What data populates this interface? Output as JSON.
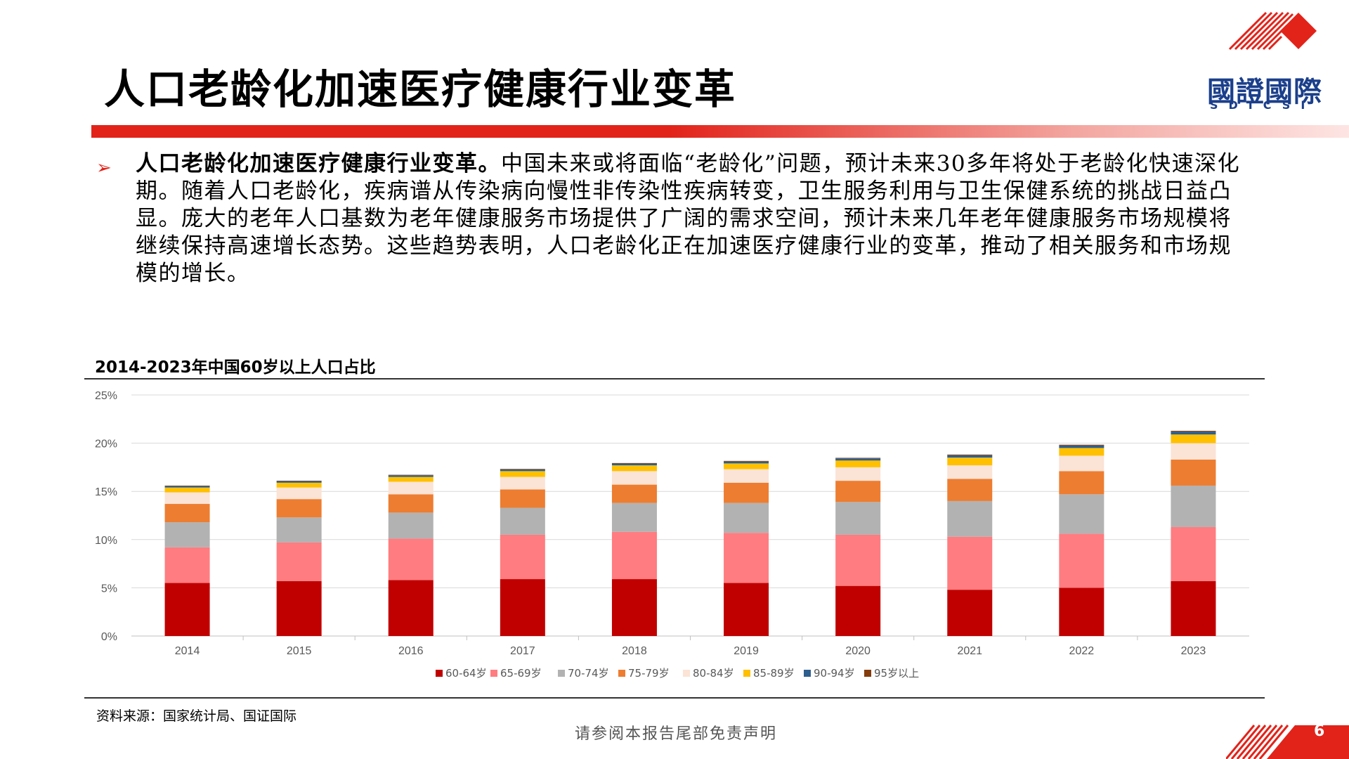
{
  "page": {
    "title": "人口老龄化加速医疗健康行业变革",
    "logo_name": "國證國際",
    "logo_sub": "SDICSI",
    "bullet_bold": "人口老龄化加速医疗健康行业变革。",
    "bullet_text": "中国未来或将面临“老龄化”问题，预计未来30多年将处于老龄化快速深化期。随着人口老龄化，疾病谱从传染病向慢性非传染性疾病转变，卫生服务利用与卫生保健系统的挑战日益凸显。庞大的老年人口基数为老年健康服务市场提供了广阔的需求空间，预计未来几年老年健康服务市场规模将继续保持高速增长态势。这些趋势表明，人口老龄化正在加速医疗健康行业的变革，推动了相关服务和市场规模的增长。",
    "source": "资料来源：国家统计局、国证国际",
    "disclaimer": "请参阅本报告尾部免责声明",
    "page_number": "6",
    "accent_color": "#e2231a",
    "logo_color": "#1b3f8b"
  },
  "chart_data": {
    "type": "bar",
    "stacked": true,
    "title": "2014-2023年中国60岁以上人口占比",
    "categories": [
      "2014",
      "2015",
      "2016",
      "2017",
      "2018",
      "2019",
      "2020",
      "2021",
      "2022",
      "2023"
    ],
    "ylim": [
      0,
      25
    ],
    "yticks": [
      "0%",
      "5%",
      "10%",
      "15%",
      "20%",
      "25%"
    ],
    "grid": true,
    "legend_position": "bottom",
    "series": [
      {
        "name": "60-64岁",
        "color": "#c00000",
        "values": [
          5.5,
          5.7,
          5.8,
          5.9,
          5.9,
          5.5,
          5.2,
          4.8,
          5.0,
          5.7
        ]
      },
      {
        "name": "65-69岁",
        "color": "#ff7c80",
        "values": [
          3.7,
          4.0,
          4.3,
          4.6,
          4.9,
          5.2,
          5.3,
          5.5,
          5.6,
          5.6
        ]
      },
      {
        "name": "70-74岁",
        "color": "#b2b2b2",
        "values": [
          2.6,
          2.6,
          2.7,
          2.8,
          3.0,
          3.1,
          3.4,
          3.7,
          4.1,
          4.3
        ]
      },
      {
        "name": "75-79岁",
        "color": "#ed7d31",
        "values": [
          1.9,
          1.9,
          1.9,
          1.9,
          1.9,
          2.1,
          2.2,
          2.3,
          2.4,
          2.7
        ]
      },
      {
        "name": "80-84岁",
        "color": "#fbe3d6",
        "values": [
          1.2,
          1.2,
          1.3,
          1.3,
          1.4,
          1.4,
          1.4,
          1.4,
          1.6,
          1.7
        ]
      },
      {
        "name": "85-89岁",
        "color": "#ffc000",
        "values": [
          0.5,
          0.5,
          0.5,
          0.6,
          0.6,
          0.6,
          0.7,
          0.8,
          0.8,
          0.9
        ]
      },
      {
        "name": "90-94岁",
        "color": "#2e5e8e",
        "values": [
          0.15,
          0.16,
          0.17,
          0.18,
          0.19,
          0.2,
          0.22,
          0.25,
          0.27,
          0.3
        ]
      },
      {
        "name": "95岁以上",
        "color": "#843c0c",
        "values": [
          0.05,
          0.05,
          0.05,
          0.05,
          0.05,
          0.06,
          0.06,
          0.07,
          0.07,
          0.08
        ]
      }
    ]
  }
}
